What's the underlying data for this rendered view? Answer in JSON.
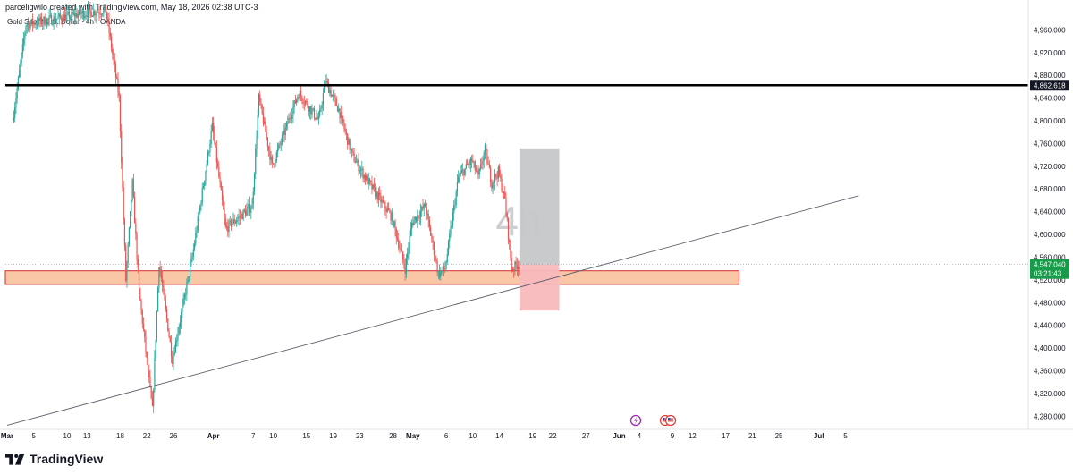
{
  "header": {
    "credit": "parceligwilo created with TradingView.com, May 18, 2026 02:38 UTC-3",
    "symbol": "Gold Spot / U.S. Dollar · 4h · OANDA"
  },
  "watermark": "4h",
  "brand": {
    "name": "TradingView",
    "logo_icon": "tradingview-logo-icon"
  },
  "colors": {
    "up": "#26a69a",
    "down": "#ef5350",
    "zone_fill": "#f9c7a6",
    "zone_border": "#d32f2f",
    "price_badge": "#189c4a",
    "level_badge": "#131722",
    "target_box": "#c6c7c9",
    "stop_box": "#f8b9bb"
  },
  "chart_data": {
    "type": "candlestick",
    "timeframe": "4h",
    "price_axis": {
      "ticks": [
        "4,960.000",
        "4,920.000",
        "4,880.000",
        "4,840.000",
        "4,800.000",
        "4,760.000",
        "4,720.000",
        "4,680.000",
        "4,640.000",
        "4,600.000",
        "4,560.000",
        "4,520.000",
        "4,480.000",
        "4,440.000",
        "4,400.000",
        "4,360.000",
        "4,320.000",
        "4,280.000"
      ],
      "ylim": [
        4260,
        5000
      ]
    },
    "time_axis": {
      "ticks": [
        "Mar",
        "5",
        "10",
        "13",
        "18",
        "22",
        "26",
        "Apr",
        "7",
        "10",
        "15",
        "19",
        "23",
        "28",
        "May",
        "6",
        "10",
        "14",
        "19",
        "22",
        "27",
        "Jun",
        "4",
        "9",
        "12",
        "17",
        "21",
        "25",
        "Jul",
        "5"
      ]
    },
    "key_points": [
      {
        "date": "2026-03-02",
        "price": 4800
      },
      {
        "date": "2026-03-04",
        "price": 4970
      },
      {
        "date": "2026-03-13",
        "price": 4990
      },
      {
        "date": "2026-03-16",
        "price": 4995
      },
      {
        "date": "2026-03-18",
        "price": 4840
      },
      {
        "date": "2026-03-19",
        "price": 4520
      },
      {
        "date": "2026-03-20",
        "price": 4690
      },
      {
        "date": "2026-03-21",
        "price": 4500
      },
      {
        "date": "2026-03-23",
        "price": 4290
      },
      {
        "date": "2026-03-24",
        "price": 4550
      },
      {
        "date": "2026-03-26",
        "price": 4380
      },
      {
        "date": "2026-03-29",
        "price": 4560
      },
      {
        "date": "2026-04-01",
        "price": 4790
      },
      {
        "date": "2026-04-03",
        "price": 4610
      },
      {
        "date": "2026-04-07",
        "price": 4650
      },
      {
        "date": "2026-04-08",
        "price": 4840
      },
      {
        "date": "2026-04-10",
        "price": 4720
      },
      {
        "date": "2026-04-14",
        "price": 4850
      },
      {
        "date": "2026-04-17",
        "price": 4800
      },
      {
        "date": "2026-04-18",
        "price": 4870
      },
      {
        "date": "2026-04-20",
        "price": 4820
      },
      {
        "date": "2026-04-22",
        "price": 4740
      },
      {
        "date": "2026-04-24",
        "price": 4700
      },
      {
        "date": "2026-04-28",
        "price": 4630
      },
      {
        "date": "2026-04-30",
        "price": 4540
      },
      {
        "date": "2026-05-01",
        "price": 4620
      },
      {
        "date": "2026-05-03",
        "price": 4650
      },
      {
        "date": "2026-05-05",
        "price": 4530
      },
      {
        "date": "2026-05-06",
        "price": 4540
      },
      {
        "date": "2026-05-08",
        "price": 4700
      },
      {
        "date": "2026-05-10",
        "price": 4730
      },
      {
        "date": "2026-05-11",
        "price": 4700
      },
      {
        "date": "2026-05-12",
        "price": 4750
      },
      {
        "date": "2026-05-13",
        "price": 4690
      },
      {
        "date": "2026-05-14",
        "price": 4710
      },
      {
        "date": "2026-05-15",
        "price": 4660
      },
      {
        "date": "2026-05-16",
        "price": 4540
      },
      {
        "date": "2026-05-17",
        "price": 4547.04
      }
    ],
    "resistance_level": 4862.618,
    "last_price": "4,547.040",
    "countdown": "03:21:43",
    "level_label": "4,862.618",
    "support_zone": {
      "from": 4512,
      "to": 4536,
      "start": "2026-03-01",
      "end": "2026-06-19"
    },
    "trendline": {
      "start": {
        "date": "2026-03-01",
        "price": 4264
      },
      "end": {
        "date": "2026-07-07",
        "price": 4668
      }
    },
    "position": {
      "start": "2026-05-17",
      "end": "2026-05-23",
      "entry": 4547,
      "target": 4750,
      "stop": 4466
    }
  }
}
